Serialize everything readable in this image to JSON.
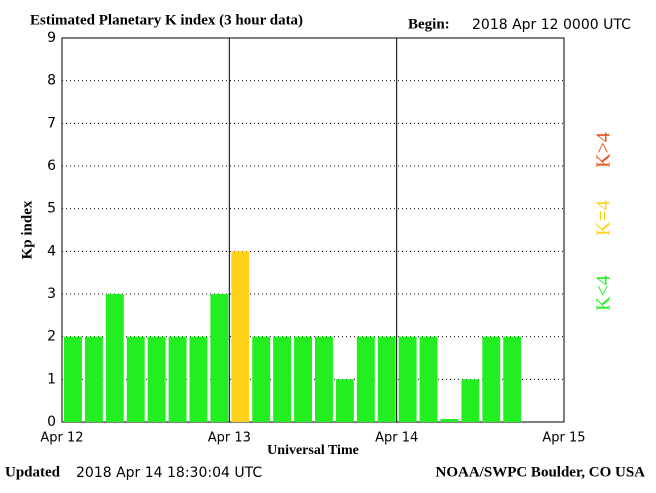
{
  "chart_data": {
    "type": "bar",
    "title": "Estimated Planetary K index (3 hour data)",
    "begin_label": "Begin:",
    "begin_value": "2018 Apr 12 0000 UTC",
    "updated_label": "Updated",
    "updated_value": "2018 Apr 14 18:30:04 UTC",
    "source": "NOAA/SWPC Boulder, CO USA",
    "x_label": "Universal Time",
    "y_label": "Kp index",
    "x": [
      0,
      3,
      6,
      9,
      12,
      15,
      18,
      21,
      24,
      27,
      30,
      33,
      36,
      39,
      42,
      45,
      48,
      51,
      54,
      57,
      60,
      63
    ],
    "values": [
      2,
      2,
      3,
      2,
      2,
      2,
      2,
      3,
      4,
      2,
      2,
      2,
      2,
      1,
      2,
      2,
      2,
      2,
      0,
      1,
      2,
      2
    ],
    "colors": [
      "#22ee22",
      "#22ee22",
      "#22ee22",
      "#22ee22",
      "#22ee22",
      "#22ee22",
      "#22ee22",
      "#22ee22",
      "#ffd21a",
      "#22ee22",
      "#22ee22",
      "#22ee22",
      "#22ee22",
      "#22ee22",
      "#22ee22",
      "#22ee22",
      "#22ee22",
      "#22ee22",
      "#22ee22",
      "#22ee22",
      "#22ee22",
      "#22ee22"
    ],
    "xlim": [
      0,
      72
    ],
    "xticks": [
      {
        "value": 0,
        "label": "Apr 12"
      },
      {
        "value": 24,
        "label": "Apr 13"
      },
      {
        "value": 48,
        "label": "Apr 14"
      },
      {
        "value": 72,
        "label": "Apr 15"
      }
    ],
    "ylim": [
      0,
      9
    ],
    "yticks": [
      0,
      1,
      2,
      3,
      4,
      5,
      6,
      7,
      8,
      9
    ],
    "grid": true,
    "legend": [
      {
        "label": "K>4",
        "color": "#e8521a"
      },
      {
        "label": "K=4",
        "color": "#ffd21a"
      },
      {
        "label": "K<4",
        "color": "#22ee22"
      }
    ]
  }
}
